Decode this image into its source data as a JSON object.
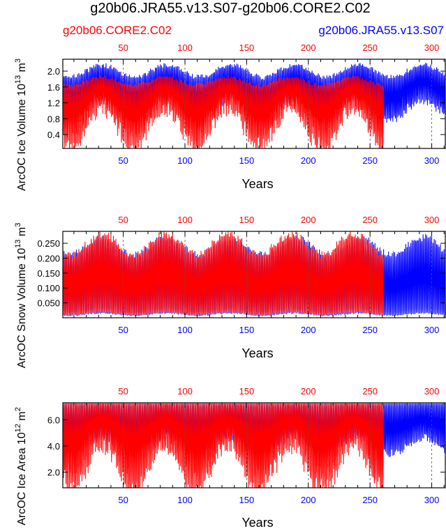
{
  "title": "g20b06.JRA55.v13.S07-g20b06.CORE2.C02",
  "legend": {
    "left": "g20b06.CORE2.C02",
    "right": "g20b06.JRA55.v13.S07"
  },
  "colors": {
    "core2": "#ff0000",
    "jra55": "#0000ff",
    "axis": "#000000",
    "grid": "#555555"
  },
  "chart_data": [
    {
      "type": "line",
      "ylabel_main": "ArcOC Ice Volume 10",
      "ylabel_exp": "13",
      "ylabel_unit": " m",
      "ylabel_unit_exp": "3",
      "xlabel": "Years",
      "xlim": [
        1,
        311
      ],
      "ylim": [
        0.05,
        2.3
      ],
      "yticks": [
        0.4,
        0.8,
        1.2,
        1.6,
        2.0
      ],
      "ytick_labels": [
        "0.4",
        "0.8",
        "1.2",
        "1.6",
        "2.0"
      ],
      "xticks": [
        50,
        100,
        150,
        200,
        250,
        300
      ],
      "xtick_labels": [
        "50",
        "100",
        "150",
        "200",
        "250",
        "300"
      ],
      "series": [
        {
          "name": "g20b06.JRA55.v13.S07",
          "x_end": 311,
          "envelope": {
            "max_base": 2.0,
            "max_amp": 0.15,
            "min_base": 1.1,
            "min_amp": 0.25,
            "period": 52
          }
        },
        {
          "name": "g20b06.CORE2.C02",
          "x_end": 261,
          "envelope": {
            "max_base": 1.75,
            "max_amp": 0.1,
            "min_base": 0.75,
            "min_amp": 0.5,
            "period": 51
          }
        }
      ]
    },
    {
      "type": "line",
      "ylabel_main": "ArcOC Snow Volume 10",
      "ylabel_exp": "13",
      "ylabel_unit": " m",
      "ylabel_unit_exp": "3",
      "xlabel": "Years",
      "xlim": [
        1,
        311
      ],
      "ylim": [
        0.0,
        0.29
      ],
      "yticks": [
        0.05,
        0.1,
        0.15,
        0.2,
        0.25
      ],
      "ytick_labels": [
        "0.050",
        "0.100",
        "0.150",
        "0.200",
        "0.250"
      ],
      "xticks": [
        50,
        100,
        150,
        200,
        250,
        300
      ],
      "xtick_labels": [
        "50",
        "100",
        "150",
        "200",
        "250",
        "300"
      ],
      "series": [
        {
          "name": "g20b06.JRA55.v13.S07",
          "x_end": 311,
          "envelope": {
            "max_base": 0.24,
            "max_amp": 0.03,
            "min_base": 0.012,
            "min_amp": 0.004,
            "period": 52
          }
        },
        {
          "name": "g20b06.CORE2.C02",
          "x_end": 261,
          "envelope": {
            "max_base": 0.245,
            "max_amp": 0.035,
            "min_base": 0.015,
            "min_amp": 0.005,
            "period": 51
          }
        }
      ]
    },
    {
      "type": "line",
      "ylabel_main": "ArcOC Ice Area 10",
      "ylabel_exp": "12",
      "ylabel_unit": " m",
      "ylabel_unit_exp": "2",
      "xlabel": "Years",
      "xlim": [
        1,
        311
      ],
      "ylim": [
        0.8,
        7.3
      ],
      "yticks": [
        2.0,
        4.0,
        6.0
      ],
      "ytick_labels": [
        "2.0",
        "4.0",
        "6.0"
      ],
      "xticks": [
        50,
        100,
        150,
        200,
        250,
        300
      ],
      "xtick_labels": [
        "50",
        "100",
        "150",
        "200",
        "250",
        "300"
      ],
      "series": [
        {
          "name": "g20b06.JRA55.v13.S07",
          "x_end": 311,
          "envelope": {
            "max_base": 7.25,
            "max_amp": 0.0,
            "min_base": 4.2,
            "min_amp": 0.6,
            "period": 52
          }
        },
        {
          "name": "g20b06.CORE2.C02",
          "x_end": 261,
          "envelope": {
            "max_base": 7.25,
            "max_amp": 0.0,
            "min_base": 3.0,
            "min_amp": 1.8,
            "period": 51
          }
        }
      ]
    }
  ]
}
